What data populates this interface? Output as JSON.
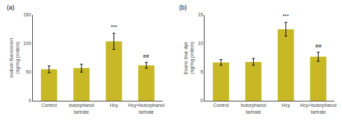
{
  "chart_data": [
    {
      "type": "bar",
      "title": "(a)",
      "ylabel": "sodium fluorescein\n(ng/mg protein)",
      "categories": [
        "Control",
        "butorphanol\ntartrate",
        "Hcy",
        "Hcy+butorphanol\ntartrate"
      ],
      "values": [
        55,
        57,
        104,
        62
      ],
      "errors": [
        6,
        7,
        14,
        5
      ],
      "annotations": [
        {
          "category": "Hcy",
          "text": "***"
        },
        {
          "category": "Hcy+butorphanol\ntartrate",
          "text": "##"
        }
      ],
      "color": "#c8b825",
      "ylim": [
        0,
        150
      ],
      "yticks": [
        0,
        50,
        100,
        150
      ],
      "grid": false
    },
    {
      "type": "bar",
      "title": "(b)",
      "ylabel": "Evans blue dye\n(ng/mg protein)",
      "categories": [
        "Control",
        "butorphanol\ntartrate",
        "Hcy",
        "Hcy+butorphanol\ntartrate"
      ],
      "values": [
        6.7,
        6.8,
        12.5,
        7.7
      ],
      "errors": [
        0.5,
        0.6,
        1.2,
        0.8
      ],
      "annotations": [
        {
          "category": "Hcy",
          "text": "***"
        },
        {
          "category": "Hcy+butorphanol\ntartrate",
          "text": "##"
        }
      ],
      "color": "#c8b825",
      "ylim": [
        0,
        15
      ],
      "yticks": [
        0,
        5,
        10,
        15
      ],
      "grid": false
    }
  ]
}
